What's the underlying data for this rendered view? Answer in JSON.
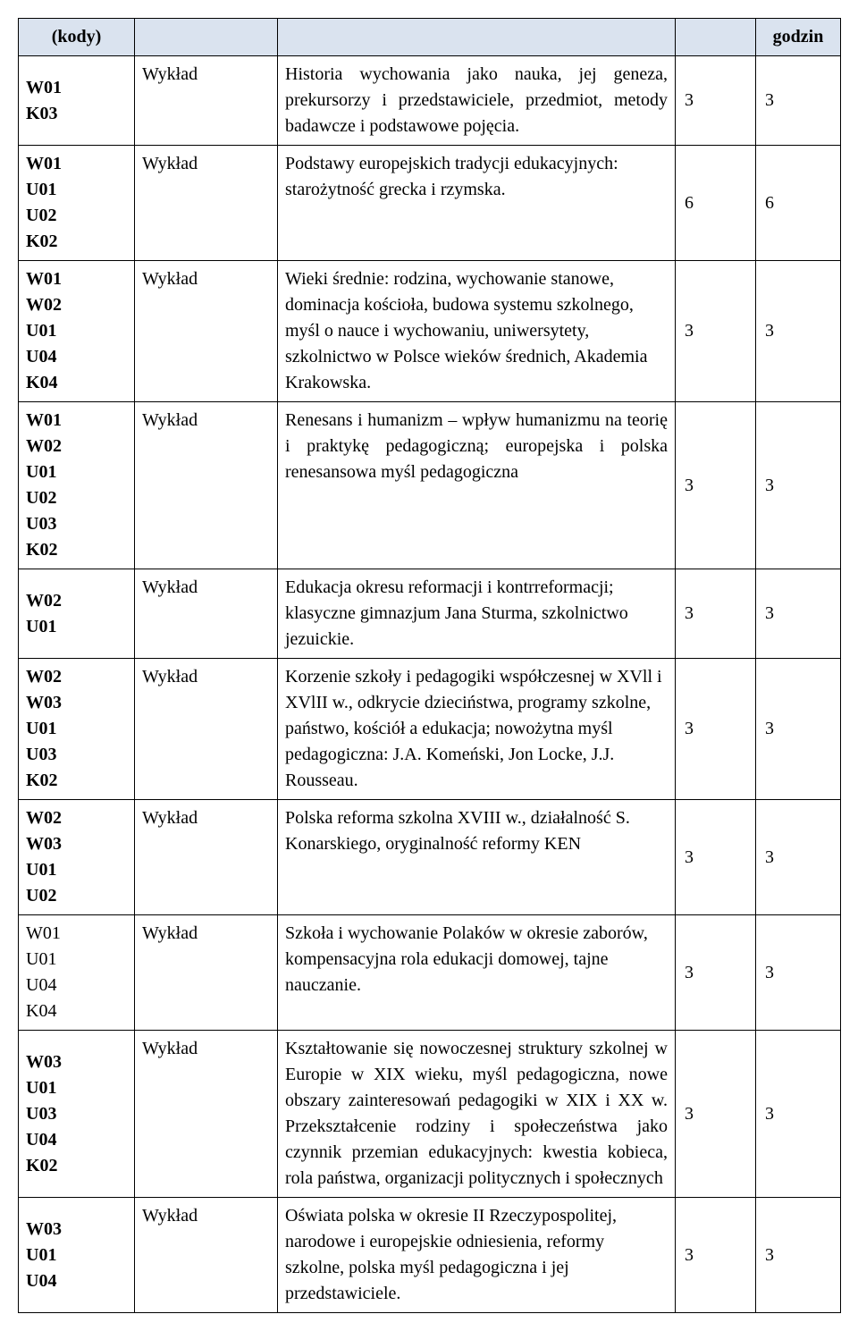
{
  "header": {
    "col1": "(kody)",
    "col2": "",
    "col3": "",
    "col4": "",
    "col5": "godzin"
  },
  "rows": [
    {
      "codes": "W01\nK03",
      "codes_bold": true,
      "type": "Wykład",
      "desc": "Historia wychowania jako nauka, jej geneza, prekursorzy i przedstawiciele, przedmiot, metody badawcze i podstawowe pojęcia.",
      "desc_justify": true,
      "h1": "3",
      "h2": "3"
    },
    {
      "codes": "W01\nU01\nU02\nK02",
      "codes_bold": true,
      "type": "Wykład",
      "desc": "Podstawy europejskich tradycji edukacyjnych: starożytność grecka i rzymska.",
      "desc_justify": false,
      "h1": "6",
      "h2": "6"
    },
    {
      "codes": "W01\nW02\nU01\nU04\nK04",
      "codes_bold": true,
      "type": "Wykład",
      "desc": "Wieki średnie: rodzina, wychowanie stanowe, dominacja kościoła, budowa systemu szkolnego, myśl o nauce i wychowaniu, uniwersytety, szkolnictwo w Polsce wieków średnich, Akademia Krakowska.",
      "desc_justify": false,
      "h1": "3",
      "h2": "3"
    },
    {
      "codes": "W01\nW02\nU01\nU02\nU03\nK02",
      "codes_bold": true,
      "type": "Wykład",
      "desc": "Renesans i humanizm – wpływ humanizmu na teorię i praktykę pedagogiczną; europejska i polska renesansowa myśl pedagogiczna",
      "desc_justify": true,
      "h1": "3",
      "h2": "3"
    },
    {
      "codes": "W02\nU01",
      "codes_bold": true,
      "type": "Wykład",
      "desc": "Edukacja okresu reformacji i kontrreformacji; klasyczne gimnazjum Jana Sturma, szkolnictwo jezuickie.",
      "desc_justify": false,
      "h1": "3",
      "h2": "3"
    },
    {
      "codes": "W02\nW03\nU01\nU03\nK02",
      "codes_bold": true,
      "type": "Wykład",
      "desc": "Korzenie szkoły i pedagogiki współczesnej w XVll i XVlII w., odkrycie dzieciństwa, programy szkolne, państwo, kościół a edukacja; nowożytna myśl pedagogiczna: J.A. Komeński, Jon Locke, J.J. Rousseau.",
      "desc_justify": false,
      "h1": "3",
      "h2": "3"
    },
    {
      "codes": "W02\nW03\nU01\nU02",
      "codes_bold": true,
      "type": "Wykład",
      "desc": "Polska reforma szkolna XVIII w., działalność S. Konarskiego, oryginalność reformy KEN",
      "desc_justify": false,
      "h1": "3",
      "h2": "3"
    },
    {
      "codes": "W01\nU01\nU04\nK04",
      "codes_bold": false,
      "type": "Wykład",
      "desc": "Szkoła i wychowanie Polaków w okresie zaborów, kompensacyjna rola edukacji domowej, tajne nauczanie.",
      "desc_justify": false,
      "h1": "3",
      "h2": "3"
    },
    {
      "codes": "W03\nU01\nU03\nU04\nK02",
      "codes_bold": true,
      "type": "Wykład",
      "desc": "Kształtowanie się nowoczesnej struktury szkolnej w Europie w XIX wieku, myśl pedagogiczna, nowe obszary zainteresowań pedagogiki w XIX i XX w. Przekształcenie rodziny i społeczeństwa jako czynnik przemian edukacyjnych: kwestia kobieca, rola państwa, organizacji politycznych i społecznych",
      "desc_justify": true,
      "h1": "3",
      "h2": "3"
    },
    {
      "codes": "W03\nU01\nU04",
      "codes_bold": true,
      "type": "Wykład",
      "desc": "Oświata polska w okresie II Rzeczypospolitej, narodowe i europejskie odniesienia, reformy szkolne, polska myśl pedagogiczna i jej przedstawiciele.",
      "desc_justify": false,
      "h1": "3",
      "h2": "3"
    }
  ]
}
